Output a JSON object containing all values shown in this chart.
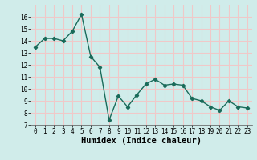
{
  "x": [
    0,
    1,
    2,
    3,
    4,
    5,
    6,
    7,
    8,
    9,
    10,
    11,
    12,
    13,
    14,
    15,
    16,
    17,
    18,
    19,
    20,
    21,
    22,
    23
  ],
  "y": [
    13.5,
    14.2,
    14.2,
    14.0,
    14.8,
    16.2,
    12.7,
    11.8,
    7.4,
    9.4,
    8.5,
    9.5,
    10.4,
    10.8,
    10.3,
    10.4,
    10.3,
    9.2,
    9.0,
    8.5,
    8.2,
    9.0,
    8.5,
    8.4
  ],
  "line_color": "#1a6b5a",
  "marker": "D",
  "marker_size": 2.2,
  "xlabel": "Humidex (Indice chaleur)",
  "ylim": [
    7,
    17
  ],
  "xlim": [
    -0.5,
    23.5
  ],
  "yticks": [
    7,
    8,
    9,
    10,
    11,
    12,
    13,
    14,
    15,
    16
  ],
  "xticks": [
    0,
    1,
    2,
    3,
    4,
    5,
    6,
    7,
    8,
    9,
    10,
    11,
    12,
    13,
    14,
    15,
    16,
    17,
    18,
    19,
    20,
    21,
    22,
    23
  ],
  "bg_color": "#d0ecea",
  "grid_color": "#f0c8c8",
  "tick_fontsize": 5.5,
  "xlabel_fontsize": 7.5,
  "line_width": 1.0
}
